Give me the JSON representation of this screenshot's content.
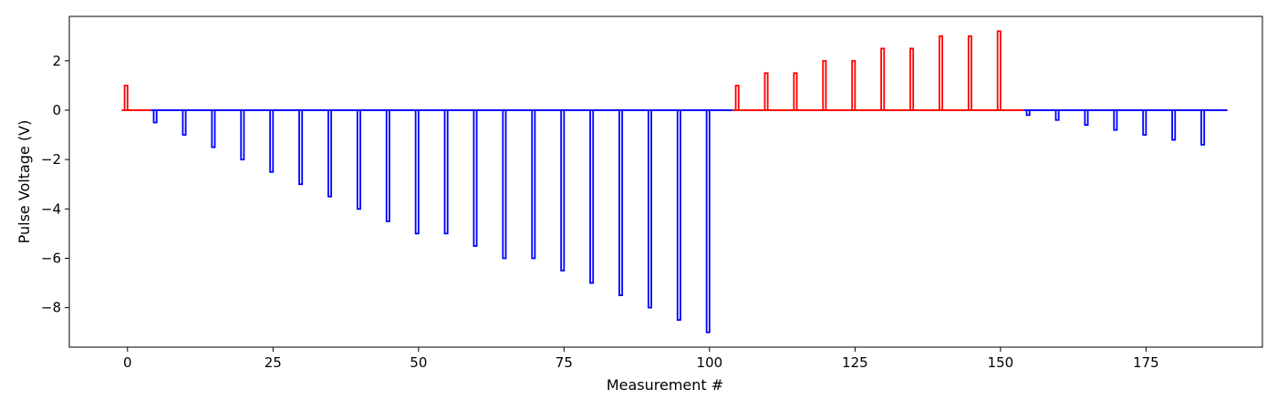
{
  "chart_data": {
    "type": "line",
    "title": "",
    "xlabel": "Measurement #",
    "ylabel": "Pulse Voltage (V)",
    "xlim": [
      -10,
      195
    ],
    "ylim": [
      -9.6,
      3.8
    ],
    "xticks": [
      0,
      25,
      50,
      75,
      100,
      125,
      150,
      175
    ],
    "yticks": [
      -8,
      -6,
      -4,
      -2,
      0,
      2
    ],
    "ytick_labels": [
      "−8",
      "−6",
      "−4",
      "−2",
      "0",
      "2"
    ],
    "grid": false,
    "legend": "none",
    "series": [
      {
        "color": "#ff0000",
        "pulses": [
          {
            "start": -0.5,
            "end": 0,
            "v": 1.0
          }
        ],
        "baseline": [
          [
            -1,
            4
          ]
        ]
      },
      {
        "color": "#0000ff",
        "pulses": [
          {
            "start": 4.5,
            "end": 5,
            "v": -0.5
          },
          {
            "start": 9.5,
            "end": 10,
            "v": -1.0
          },
          {
            "start": 14.5,
            "end": 15,
            "v": -1.5
          },
          {
            "start": 19.5,
            "end": 20,
            "v": -2.0
          },
          {
            "start": 24.5,
            "end": 25,
            "v": -2.5
          },
          {
            "start": 29.5,
            "end": 30,
            "v": -3.0
          },
          {
            "start": 34.5,
            "end": 35,
            "v": -3.5
          },
          {
            "start": 39.5,
            "end": 40,
            "v": -4.0
          },
          {
            "start": 44.5,
            "end": 45,
            "v": -4.5
          },
          {
            "start": 49.5,
            "end": 50,
            "v": -5.0
          },
          {
            "start": 54.5,
            "end": 55,
            "v": -5.0
          },
          {
            "start": 59.5,
            "end": 60,
            "v": -5.5
          },
          {
            "start": 64.5,
            "end": 65,
            "v": -6.0
          },
          {
            "start": 69.5,
            "end": 70,
            "v": -6.0
          },
          {
            "start": 74.5,
            "end": 75,
            "v": -6.5
          },
          {
            "start": 79.5,
            "end": 80,
            "v": -7.0
          },
          {
            "start": 84.5,
            "end": 85,
            "v": -7.5
          },
          {
            "start": 89.5,
            "end": 90,
            "v": -8.0
          },
          {
            "start": 94.5,
            "end": 95,
            "v": -8.5
          },
          {
            "start": 99.5,
            "end": 100,
            "v": -9.0
          }
        ],
        "baseline": [
          [
            4,
            104
          ]
        ]
      },
      {
        "color": "#ff0000",
        "pulses": [
          {
            "start": 104.5,
            "end": 105,
            "v": 1.0
          },
          {
            "start": 109.5,
            "end": 110,
            "v": 1.5
          },
          {
            "start": 114.5,
            "end": 115,
            "v": 1.5
          },
          {
            "start": 119.5,
            "end": 120,
            "v": 2.0
          },
          {
            "start": 124.5,
            "end": 125,
            "v": 2.0
          },
          {
            "start": 129.5,
            "end": 130,
            "v": 2.5
          },
          {
            "start": 134.5,
            "end": 135,
            "v": 2.5
          },
          {
            "start": 139.5,
            "end": 140,
            "v": 3.0
          },
          {
            "start": 144.5,
            "end": 145,
            "v": 3.0
          },
          {
            "start": 149.5,
            "end": 150,
            "v": 3.2
          }
        ],
        "baseline": [
          [
            104,
            154
          ]
        ]
      },
      {
        "color": "#0000ff",
        "pulses": [
          {
            "start": 154.5,
            "end": 155,
            "v": -0.2
          },
          {
            "start": 159.5,
            "end": 160,
            "v": -0.4
          },
          {
            "start": 164.5,
            "end": 165,
            "v": -0.6
          },
          {
            "start": 169.5,
            "end": 170,
            "v": -0.8
          },
          {
            "start": 174.5,
            "end": 175,
            "v": -1.0
          },
          {
            "start": 179.5,
            "end": 180,
            "v": -1.2
          },
          {
            "start": 184.5,
            "end": 185,
            "v": -1.4
          }
        ],
        "baseline": [
          [
            154,
            189
          ]
        ]
      }
    ]
  }
}
